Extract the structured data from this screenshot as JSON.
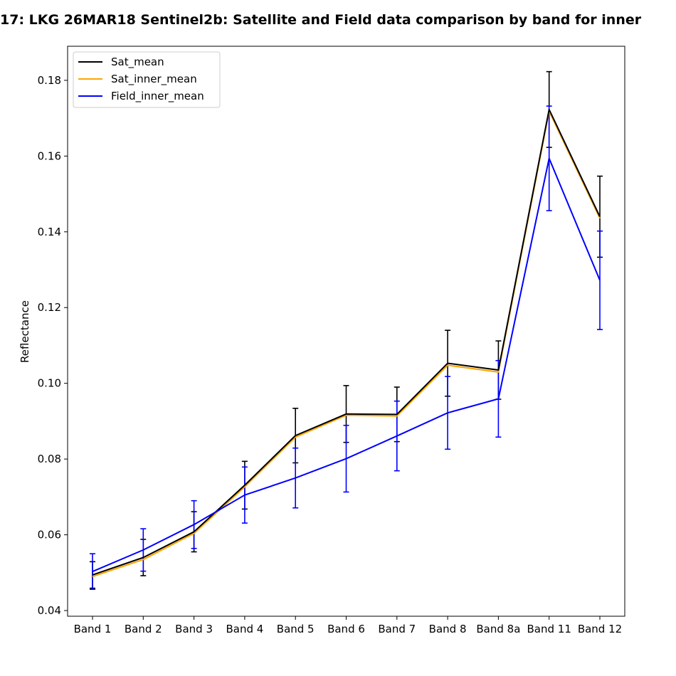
{
  "chart_data": {
    "type": "line",
    "title": "17: LKG 26MAR18  Sentinel2b: Satellite and Field data comparison by band for inner",
    "xlabel": "",
    "ylabel": "Reflectance",
    "categories": [
      "Band 1",
      "Band 2",
      "Band 3",
      "Band 4",
      "Band 5",
      "Band 6",
      "Band 7",
      "Band 8",
      "Band 8a",
      "Band 11",
      "Band 12"
    ],
    "ylim": [
      0.0385,
      0.189
    ],
    "yticks": [
      0.04,
      0.06,
      0.08,
      0.1,
      0.12,
      0.14,
      0.16,
      0.18
    ],
    "ytick_labels": [
      "0.04",
      "0.06",
      "0.08",
      "0.10",
      "0.12",
      "0.14",
      "0.16",
      "0.18"
    ],
    "grid": false,
    "legend_position": "top-left",
    "series": [
      {
        "name": "Sat_mean",
        "color": "#000000",
        "values": [
          0.0494,
          0.054,
          0.0608,
          0.0731,
          0.0862,
          0.0919,
          0.0918,
          0.1053,
          0.1035,
          0.1723,
          0.144
        ],
        "errors": [
          0.0035,
          0.0048,
          0.0053,
          0.0063,
          0.0072,
          0.0075,
          0.0072,
          0.0087,
          0.0077,
          0.01,
          0.0107
        ]
      },
      {
        "name": "Sat_inner_mean",
        "color": "#ffa500",
        "values": [
          0.0492,
          0.0537,
          0.0606,
          0.0729,
          0.086,
          0.0918,
          0.0916,
          0.105,
          0.1032,
          0.1721,
          0.1438
        ],
        "errors": [
          0.0035,
          0.0048,
          0.0053,
          0.0063,
          0.0072,
          0.0075,
          0.0072,
          0.0087,
          0.0077,
          0.01,
          0.0107
        ]
      },
      {
        "name": "Field_inner_mean",
        "color": "#0000ff",
        "values": [
          0.0503,
          0.056,
          0.0627,
          0.0705,
          0.075,
          0.0801,
          0.0861,
          0.0922,
          0.0959,
          0.1594,
          0.1272
        ],
        "errors": [
          0.0047,
          0.0056,
          0.0063,
          0.0074,
          0.0079,
          0.0088,
          0.0092,
          0.0096,
          0.0101,
          0.0138,
          0.013
        ]
      }
    ]
  }
}
